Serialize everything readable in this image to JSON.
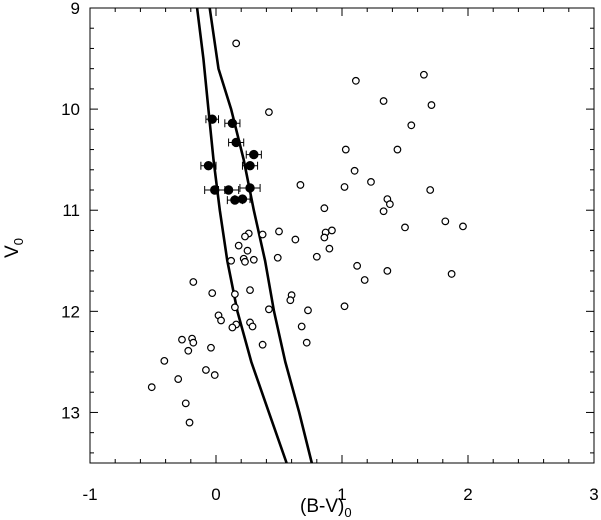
{
  "chart_data": {
    "type": "scatter",
    "title": "",
    "xlabel": "(B-V)",
    "xlabel_subscript": "0",
    "ylabel": "V",
    "ylabel_subscript": "0",
    "xlim": [
      -1,
      3
    ],
    "ylim": [
      13.5,
      9
    ],
    "y_inverted": true,
    "x_ticks": [
      -1,
      0,
      1,
      2,
      3
    ],
    "y_ticks": [
      9,
      10,
      11,
      12,
      13
    ],
    "x_tick_labels": [
      "-1",
      "0",
      "1",
      "2",
      "3"
    ],
    "y_tick_labels": [
      "9",
      "10",
      "11",
      "12",
      "13"
    ],
    "grid": false,
    "legend": "none",
    "series": [
      {
        "marker": "open-circle",
        "points": [
          [
            0.16,
            9.35
          ],
          [
            1.11,
            9.72
          ],
          [
            1.65,
            9.66
          ],
          [
            1.33,
            9.92
          ],
          [
            1.71,
            9.96
          ],
          [
            0.42,
            10.03
          ],
          [
            1.55,
            10.16
          ],
          [
            1.44,
            10.4
          ],
          [
            1.03,
            10.4
          ],
          [
            1.1,
            10.61
          ],
          [
            1.23,
            10.72
          ],
          [
            0.67,
            10.75
          ],
          [
            1.02,
            10.77
          ],
          [
            1.7,
            10.8
          ],
          [
            1.36,
            10.89
          ],
          [
            1.38,
            10.94
          ],
          [
            1.33,
            11.01
          ],
          [
            0.86,
            10.98
          ],
          [
            1.82,
            11.11
          ],
          [
            1.5,
            11.17
          ],
          [
            1.96,
            11.16
          ],
          [
            0.63,
            11.29
          ],
          [
            0.5,
            11.21
          ],
          [
            0.37,
            11.24
          ],
          [
            0.87,
            11.22
          ],
          [
            0.86,
            11.27
          ],
          [
            0.92,
            11.2
          ],
          [
            0.9,
            11.38
          ],
          [
            0.8,
            11.46
          ],
          [
            0.26,
            11.23
          ],
          [
            0.23,
            11.26
          ],
          [
            0.18,
            11.35
          ],
          [
            0.25,
            11.4
          ],
          [
            0.22,
            11.48
          ],
          [
            0.23,
            11.51
          ],
          [
            0.12,
            11.5
          ],
          [
            0.3,
            11.49
          ],
          [
            0.49,
            11.47
          ],
          [
            1.12,
            11.55
          ],
          [
            1.36,
            11.6
          ],
          [
            1.18,
            11.69
          ],
          [
            1.87,
            11.63
          ],
          [
            -0.18,
            11.71
          ],
          [
            0.27,
            11.79
          ],
          [
            -0.03,
            11.82
          ],
          [
            0.15,
            11.83
          ],
          [
            0.6,
            11.84
          ],
          [
            0.59,
            11.89
          ],
          [
            0.15,
            11.96
          ],
          [
            1.02,
            11.95
          ],
          [
            0.73,
            11.99
          ],
          [
            0.42,
            11.98
          ],
          [
            0.02,
            12.04
          ],
          [
            0.04,
            12.09
          ],
          [
            0.27,
            12.11
          ],
          [
            0.68,
            12.15
          ],
          [
            0.16,
            12.13
          ],
          [
            0.13,
            12.16
          ],
          [
            0.29,
            12.15
          ],
          [
            -0.19,
            12.27
          ],
          [
            -0.27,
            12.28
          ],
          [
            -0.18,
            12.31
          ],
          [
            0.72,
            12.31
          ],
          [
            0.37,
            12.33
          ],
          [
            -0.04,
            12.36
          ],
          [
            -0.22,
            12.39
          ],
          [
            -0.41,
            12.49
          ],
          [
            -0.08,
            12.58
          ],
          [
            -0.01,
            12.63
          ],
          [
            -0.3,
            12.67
          ],
          [
            -0.51,
            12.75
          ],
          [
            -0.24,
            12.91
          ],
          [
            -0.21,
            13.1
          ]
        ]
      },
      {
        "marker": "filled-circle-errorbar",
        "points": [
          [
            -0.03,
            10.1
          ],
          [
            0.13,
            10.14
          ],
          [
            0.16,
            10.33
          ],
          [
            0.3,
            10.45
          ],
          [
            -0.06,
            10.56
          ],
          [
            0.27,
            10.56
          ],
          [
            -0.01,
            10.8
          ],
          [
            0.1,
            10.8
          ],
          [
            0.27,
            10.78
          ],
          [
            0.15,
            10.9
          ],
          [
            0.21,
            10.89
          ]
        ],
        "x_errors": [
          0.05,
          0.06,
          0.06,
          0.06,
          0.06,
          0.06,
          0.08,
          0.08,
          0.08,
          0.06,
          0.06
        ]
      },
      {
        "marker": "line",
        "points": [
          [
            -0.15,
            9.0
          ],
          [
            -0.1,
            9.5
          ],
          [
            -0.06,
            10.0
          ],
          [
            -0.02,
            10.5
          ],
          [
            0.03,
            11.0
          ],
          [
            0.09,
            11.5
          ],
          [
            0.17,
            12.0
          ],
          [
            0.28,
            12.5
          ],
          [
            0.42,
            13.0
          ],
          [
            0.56,
            13.5
          ]
        ]
      },
      {
        "marker": "line",
        "points": [
          [
            -0.05,
            9.0
          ],
          [
            0.02,
            9.6
          ],
          [
            0.12,
            10.0
          ],
          [
            0.22,
            10.5
          ],
          [
            0.3,
            11.0
          ],
          [
            0.39,
            11.5
          ],
          [
            0.46,
            12.0
          ],
          [
            0.55,
            12.5
          ],
          [
            0.66,
            13.0
          ],
          [
            0.76,
            13.5
          ]
        ]
      }
    ]
  }
}
